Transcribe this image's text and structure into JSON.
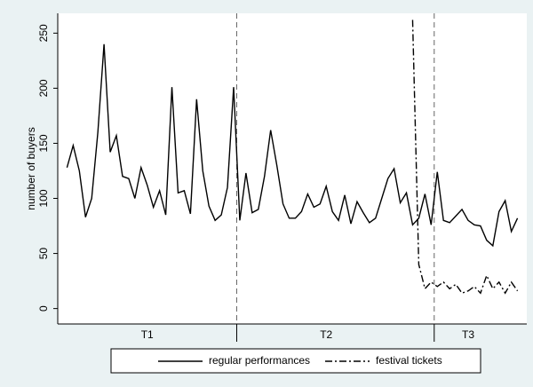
{
  "chart_data": {
    "type": "line",
    "y_label": "number of buyers",
    "x": [
      1,
      2,
      3,
      4,
      5,
      6,
      7,
      8,
      9,
      10,
      11,
      12,
      13,
      14,
      15,
      16,
      17,
      18,
      19,
      20,
      21,
      22,
      23,
      24,
      25,
      26,
      27,
      28,
      29,
      30,
      31,
      32,
      33,
      34,
      35,
      36,
      37,
      38,
      39,
      40,
      41,
      42,
      43,
      44,
      45,
      46,
      47,
      48,
      49,
      50,
      51,
      52,
      53,
      54,
      55,
      56,
      57,
      58,
      59,
      60,
      61,
      62,
      63,
      64,
      65,
      66,
      67,
      68,
      69,
      70,
      71,
      72,
      73,
      74
    ],
    "series": [
      {
        "name": "regular performances",
        "color": "#000000",
        "dash": "none",
        "values": [
          128,
          148,
          125,
          83,
          100,
          160,
          240,
          142,
          157,
          120,
          118,
          100,
          128,
          112,
          92,
          107,
          85,
          201,
          105,
          107,
          86,
          190,
          125,
          93,
          80,
          85,
          110,
          201,
          80,
          123,
          87,
          90,
          120,
          162,
          130,
          95,
          82,
          82,
          88,
          104,
          92,
          95,
          111,
          88,
          80,
          103,
          77,
          97,
          87,
          78,
          82,
          100,
          118,
          127,
          96,
          105,
          76,
          82,
          104,
          76,
          124,
          80,
          78,
          84,
          90,
          80,
          76,
          75,
          62,
          57,
          88,
          98,
          70,
          82
        ]
      },
      {
        "name": "festival tickets",
        "color": "#000000",
        "dash": "8,3,2,3",
        "values": [
          null,
          null,
          null,
          null,
          null,
          null,
          null,
          null,
          null,
          null,
          null,
          null,
          null,
          null,
          null,
          null,
          null,
          null,
          null,
          null,
          null,
          null,
          null,
          null,
          null,
          null,
          null,
          null,
          null,
          null,
          null,
          null,
          null,
          null,
          null,
          null,
          null,
          null,
          null,
          null,
          null,
          null,
          null,
          null,
          null,
          null,
          null,
          null,
          null,
          null,
          null,
          null,
          null,
          null,
          null,
          null,
          262,
          40,
          18,
          24,
          20,
          24,
          18,
          22,
          14,
          16,
          20,
          14,
          30,
          18,
          24,
          14,
          24,
          16
        ]
      }
    ],
    "xlim": [
      -0.5,
      75.5
    ],
    "ylim": [
      -14,
      268
    ],
    "yticks": [
      0,
      50,
      100,
      150,
      200,
      250
    ],
    "xticks": [
      {
        "value": 14,
        "label": "T1"
      },
      {
        "value": 43,
        "label": "T2"
      },
      {
        "value": 66,
        "label": "T3"
      }
    ],
    "vlines": [
      28.5,
      60.5
    ],
    "grid": false,
    "legend": "bottom"
  }
}
